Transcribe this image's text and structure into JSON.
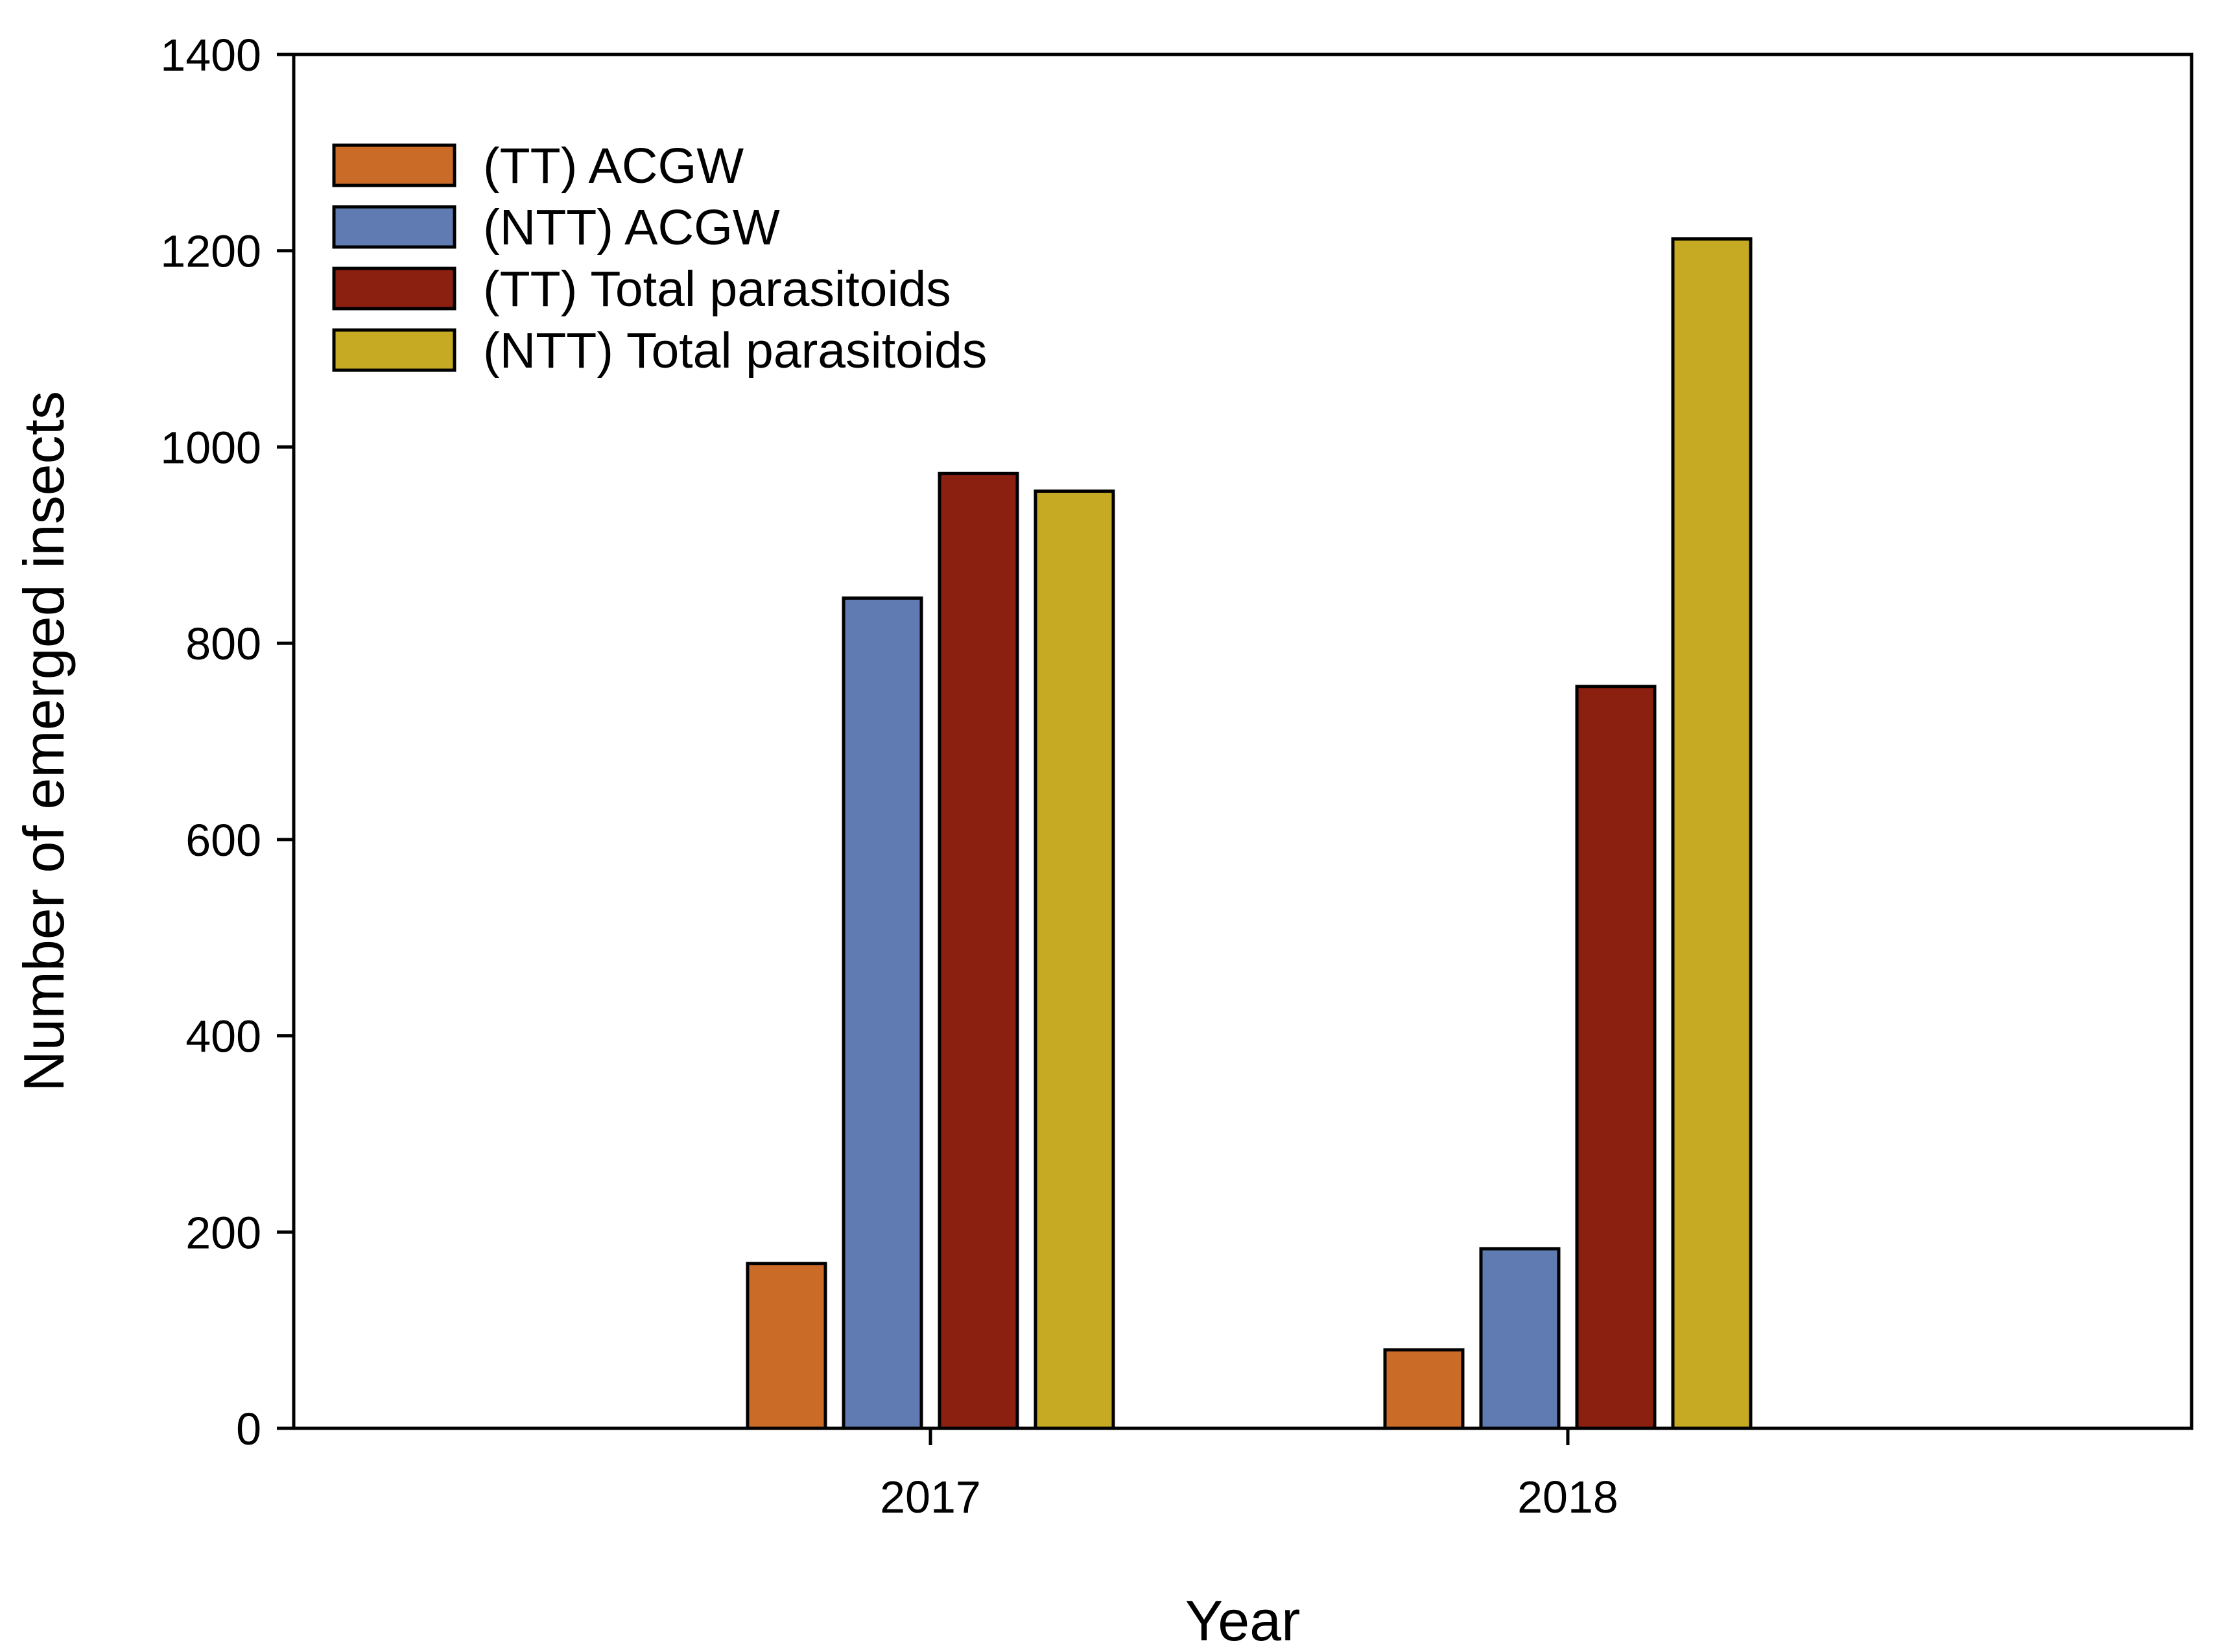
{
  "chart_data": {
    "type": "bar",
    "title": "",
    "xlabel": "Year",
    "ylabel": "Number of emerged insects",
    "categories": [
      "2017",
      "2018"
    ],
    "ylim": [
      0,
      1400
    ],
    "yticks": [
      0,
      200,
      400,
      600,
      800,
      1000,
      1200,
      1400
    ],
    "grid": false,
    "legend_position": "top-left",
    "series": [
      {
        "name": "(TT) ACGW",
        "color": "#CB6B28",
        "values": [
          168,
          80
        ]
      },
      {
        "name": "(NTT) ACGW",
        "color": "#607BB1",
        "values": [
          846,
          183
        ]
      },
      {
        "name": "(TT) Total parasitoids",
        "color": "#8C2010",
        "values": [
          973,
          756
        ]
      },
      {
        "name": "(NTT) Total parasitoids",
        "color": "#C6AA24",
        "values": [
          955,
          1212
        ]
      }
    ]
  }
}
